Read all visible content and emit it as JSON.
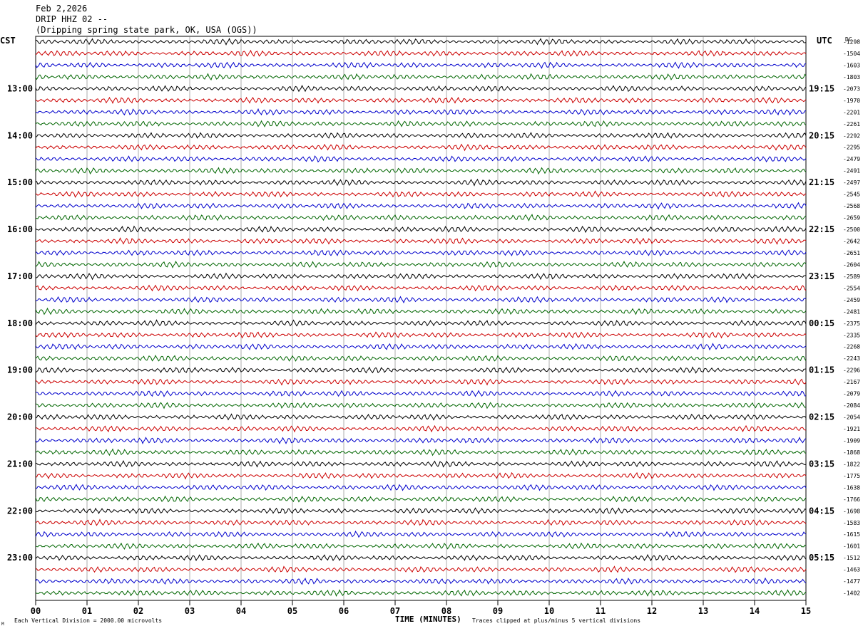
{
  "header": {
    "date": "Feb 2,2026",
    "station": "DRIP HHZ 02 --",
    "location": "(Dripping spring state park, OK, USA (OGS))"
  },
  "footer": {
    "scale_note": "Each Vertical Division = 2000.00 microvolts",
    "clip_note": "Traces clipped at plus/minus 5 vertical divisions",
    "corner_mark": "M"
  },
  "chart_data": {
    "type": "line",
    "title": "",
    "xlabel": "TIME (MINUTES)",
    "x_ticks": [
      "00",
      "01",
      "02",
      "03",
      "04",
      "05",
      "06",
      "07",
      "08",
      "09",
      "10",
      "11",
      "12",
      "13",
      "14",
      "15"
    ],
    "xlim": [
      0,
      15
    ],
    "left_axis_label": "CST",
    "right_axis_label": "UTC",
    "dc_label": "DC",
    "left_hour_labels": [
      "13:00",
      "14:00",
      "15:00",
      "16:00",
      "17:00",
      "18:00",
      "19:00",
      "20:00",
      "21:00",
      "22:00",
      "23:00"
    ],
    "right_hour_labels": [
      "19:15",
      "20:15",
      "21:15",
      "22:15",
      "23:15",
      "00:15",
      "01:15",
      "02:15",
      "03:15",
      "04:15",
      "05:15"
    ],
    "trace_colors": [
      "#000000",
      "#cc0000",
      "#0000cc",
      "#006600"
    ],
    "dc_offsets": [
      -1298,
      -1504,
      -1603,
      -1803,
      -2073,
      -1970,
      -2201,
      -2261,
      -2292,
      -2295,
      -2479,
      -2491,
      -2497,
      -2545,
      -2568,
      -2659,
      -2500,
      -2642,
      -2651,
      -2604,
      -2589,
      -2554,
      -2459,
      -2481,
      -2375,
      -2335,
      -2268,
      -2243,
      -2296,
      -2167,
      -2079,
      -2084,
      -2054,
      -1921,
      -1909,
      -1868,
      -1822,
      -1775,
      -1638,
      -1766,
      -1698,
      -1583,
      -1615,
      -1601,
      -1512,
      -1463,
      -1477,
      -1402
    ],
    "grid": true
  }
}
